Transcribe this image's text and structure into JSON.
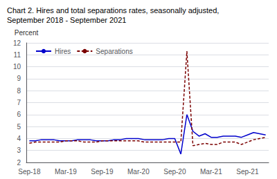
{
  "chart_data": {
    "type": "line",
    "title": "Chart 2. Hires and total separations rates, seasonally adjusted,",
    "subtitle": "September 2018 - September 2021",
    "ylabel": "Percent",
    "categories": [
      "Sep-18",
      null,
      null,
      null,
      null,
      null,
      "Mar-19",
      null,
      null,
      null,
      null,
      null,
      "Sep-19",
      null,
      null,
      null,
      null,
      null,
      "Mar-20",
      null,
      null,
      null,
      null,
      null,
      "Sep-20",
      null,
      null,
      null,
      null,
      null,
      "Mar-21",
      null,
      null,
      null,
      null,
      null,
      "Sep-21",
      null,
      null,
      null
    ],
    "series": [
      {
        "name": "Hires",
        "color": "#0000cc",
        "line_style": "solid",
        "values": [
          3.8,
          3.8,
          3.9,
          3.9,
          3.9,
          3.8,
          3.8,
          3.8,
          3.9,
          3.9,
          3.9,
          3.8,
          3.8,
          3.8,
          3.9,
          3.9,
          4.0,
          4.0,
          4.0,
          3.9,
          3.9,
          3.9,
          3.9,
          4.0,
          4.0,
          2.7,
          6.0,
          4.6,
          4.2,
          4.4,
          4.1,
          4.1,
          4.2,
          4.2,
          4.2,
          4.1,
          4.3,
          4.5,
          4.4,
          4.3
        ]
      },
      {
        "name": "Separations",
        "color": "#7b0000",
        "line_style": "dashed",
        "values": [
          3.6,
          3.7,
          3.7,
          3.7,
          3.7,
          3.7,
          3.8,
          3.8,
          3.8,
          3.7,
          3.7,
          3.7,
          3.8,
          3.8,
          3.8,
          3.8,
          3.8,
          3.8,
          3.8,
          3.7,
          3.7,
          3.7,
          3.7,
          3.7,
          3.7,
          3.7,
          11.3,
          3.4,
          3.5,
          3.6,
          3.5,
          3.5,
          3.7,
          3.7,
          3.7,
          3.5,
          3.7,
          3.9,
          4.0,
          4.1
        ]
      }
    ],
    "ylim": [
      2,
      12
    ],
    "yticks": [
      2,
      3,
      4,
      5,
      6,
      7,
      8,
      9,
      10,
      11,
      12
    ],
    "grid": true,
    "legend": "upper left"
  }
}
